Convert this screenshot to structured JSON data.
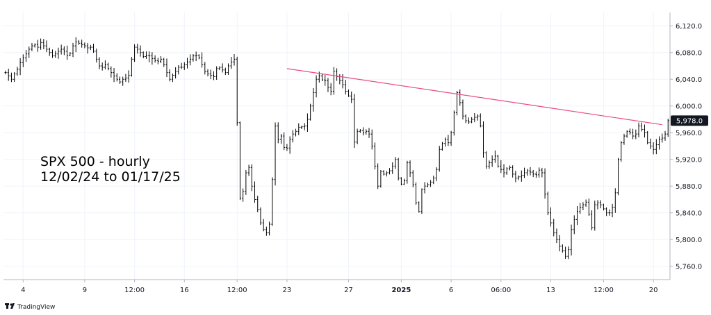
{
  "chart_data": {
    "type": "line",
    "style": "hourly-bars",
    "title_lines": [
      "SPX 500 - hourly",
      "12/02/24 to 01/17/25"
    ],
    "ylim": [
      5740,
      6140
    ],
    "y_ticks": [
      6120,
      6080,
      6040,
      6000,
      5960,
      5920,
      5880,
      5840,
      5800,
      5760
    ],
    "y_tick_labels": [
      "6,120.0",
      "6,080.0",
      "6,040.0",
      "6,000.0",
      "5,960.0",
      "5,920.0",
      "5,880.0",
      "5,840.0",
      "5,800.0",
      "5,760.0"
    ],
    "x_ticks": [
      {
        "label": "4",
        "bar": 6,
        "bold": false
      },
      {
        "label": "9",
        "bar": 27,
        "bold": false
      },
      {
        "label": "12:00",
        "bar": 44,
        "bold": false
      },
      {
        "label": "16",
        "bar": 61,
        "bold": false
      },
      {
        "label": "12:00",
        "bar": 79,
        "bold": false
      },
      {
        "label": "23",
        "bar": 96,
        "bold": false
      },
      {
        "label": "27",
        "bar": 117,
        "bold": false
      },
      {
        "label": "2025",
        "bar": 135,
        "bold": true
      },
      {
        "label": "6",
        "bar": 152,
        "bold": false
      },
      {
        "label": "06:00",
        "bar": 169,
        "bold": false
      },
      {
        "label": "13",
        "bar": 186,
        "bold": false
      },
      {
        "label": "12:00",
        "bar": 204,
        "bold": false
      },
      {
        "label": "20",
        "bar": 221,
        "bold": false
      }
    ],
    "x_bar_range": [
      0,
      225
    ],
    "series": [
      {
        "values": [
          6050,
          6045,
          6040,
          6048,
          6055,
          6065,
          6072,
          6078,
          6085,
          6090,
          6092,
          6088,
          6095,
          6090,
          6085,
          6080,
          6075,
          6078,
          6082,
          6085,
          6082,
          6076,
          6079,
          6090,
          6096,
          6094,
          6092,
          6090,
          6087,
          6088,
          6082,
          6070,
          6060,
          6058,
          6062,
          6056,
          6050,
          6045,
          6040,
          6036,
          6040,
          6042,
          6046,
          6070,
          6088,
          6085,
          6080,
          6074,
          6076,
          6075,
          6071,
          6068,
          6067,
          6070,
          6062,
          6050,
          6040,
          6046,
          6052,
          6058,
          6058,
          6062,
          6066,
          6070,
          6075,
          6076,
          6072,
          6062,
          6052,
          6048,
          6046,
          6044,
          6056,
          6058,
          6054,
          6050,
          6060,
          6066,
          6070,
          5975,
          5862,
          5872,
          5900,
          5908,
          5880,
          5860,
          5845,
          5825,
          5815,
          5810,
          5823,
          5890,
          5970,
          5950,
          5955,
          5938,
          5937,
          5950,
          5958,
          5962,
          5968,
          5969,
          5970,
          5980,
          6000,
          6020,
          6040,
          6045,
          6039,
          6038,
          6028,
          6022,
          6052,
          6044,
          6038,
          6032,
          6022,
          6015,
          6010,
          5946,
          5962,
          5963,
          5960,
          5962,
          5958,
          5940,
          5910,
          5880,
          5902,
          5898,
          5900,
          5903,
          5910,
          5920,
          5892,
          5883,
          5888,
          5915,
          5900,
          5882,
          5855,
          5842,
          5875,
          5880,
          5882,
          5886,
          5892,
          5905,
          5935,
          5944,
          5950,
          5945,
          5960,
          5990,
          6020,
          6005,
          5985,
          5978,
          5976,
          5980,
          5983,
          5985,
          5970,
          5930,
          5910,
          5915,
          5920,
          5925,
          5910,
          5905,
          5900,
          5906,
          5908,
          5898,
          5892,
          5894,
          5896,
          5900,
          5903,
          5901,
          5898,
          5897,
          5904,
          5900,
          5868,
          5840,
          5825,
          5810,
          5800,
          5790,
          5783,
          5775,
          5785,
          5815,
          5830,
          5842,
          5848,
          5852,
          5856,
          5838,
          5818,
          5852,
          5855,
          5852,
          5846,
          5840,
          5840,
          5848,
          5870,
          5920,
          5945,
          5955,
          5962,
          5960,
          5955,
          5958,
          5970,
          5965,
          5960,
          5945,
          5940,
          5935,
          5942,
          5950,
          5952,
          5958,
          5978
        ]
      }
    ],
    "annotations": [
      {
        "type": "trendline",
        "color": "#e94a87",
        "from": {
          "bar": 96,
          "y": 6056
        },
        "to": {
          "bar": 224,
          "y": 5972
        }
      }
    ],
    "last_price_label": "5,978.0",
    "last_price": 5978,
    "grid": true
  },
  "branding": {
    "label": "TradingView",
    "icon": "tradingview-logo-icon"
  },
  "colors": {
    "bars": "#000000",
    "trendline": "#e94a87",
    "grid": "#f0f3fa",
    "axis": "#b2b5be",
    "badge": "#131722"
  }
}
